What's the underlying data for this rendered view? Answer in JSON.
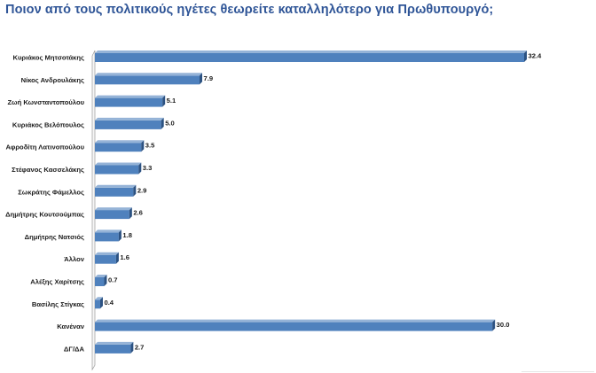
{
  "title": "Ποιον από τους πολιτικούς ηγέτες θεωρείτε καταλληλότερο για Πρωθυπουργό;",
  "colors": {
    "bar_face": "#4f81bd",
    "bar_top": "#95b3d7",
    "bar_side": "#2c5282",
    "title": "#2f5597"
  },
  "chart_data": {
    "type": "bar",
    "orientation": "horizontal",
    "style": "3d",
    "title": "Ποιον από τους πολιτικούς ηγέτες θεωρείτε καταλληλότερο για Πρωθυπουργό;",
    "categories": [
      "Κυριάκος Μητσοτάκης",
      "Νίκος Ανδρουλάκης",
      "Ζωή Κωνσταντοπούλου",
      "Κυριάκος Βελόπουλος",
      "Αφροδίτη Λατινοπούλου",
      "Στέφανος Κασσελάκης",
      "Σωκράτης Φάμελλος",
      "Δημήτρης Κουτσούμπας",
      "Δημήτρης Νατσιός",
      "Άλλον",
      "Αλέξης Χαρίτσης",
      "Βασίλης Στίγκας",
      "Κανέναν",
      "ΔΓ/ΔΑ"
    ],
    "values": [
      32.4,
      7.9,
      5.1,
      5.0,
      3.5,
      3.3,
      2.9,
      2.6,
      1.8,
      1.6,
      0.7,
      0.4,
      30.0,
      2.7
    ],
    "value_labels": [
      "32.4",
      "7.9",
      "5.1",
      "5.0",
      "3.5",
      "3.3",
      "2.9",
      "2.6",
      "1.8",
      "1.6",
      "0.7",
      "0.4",
      "30.0",
      "2.7"
    ],
    "xlabel": "",
    "ylabel": "",
    "xlim": [
      0,
      32.4
    ],
    "grid": false,
    "legend": "none"
  }
}
